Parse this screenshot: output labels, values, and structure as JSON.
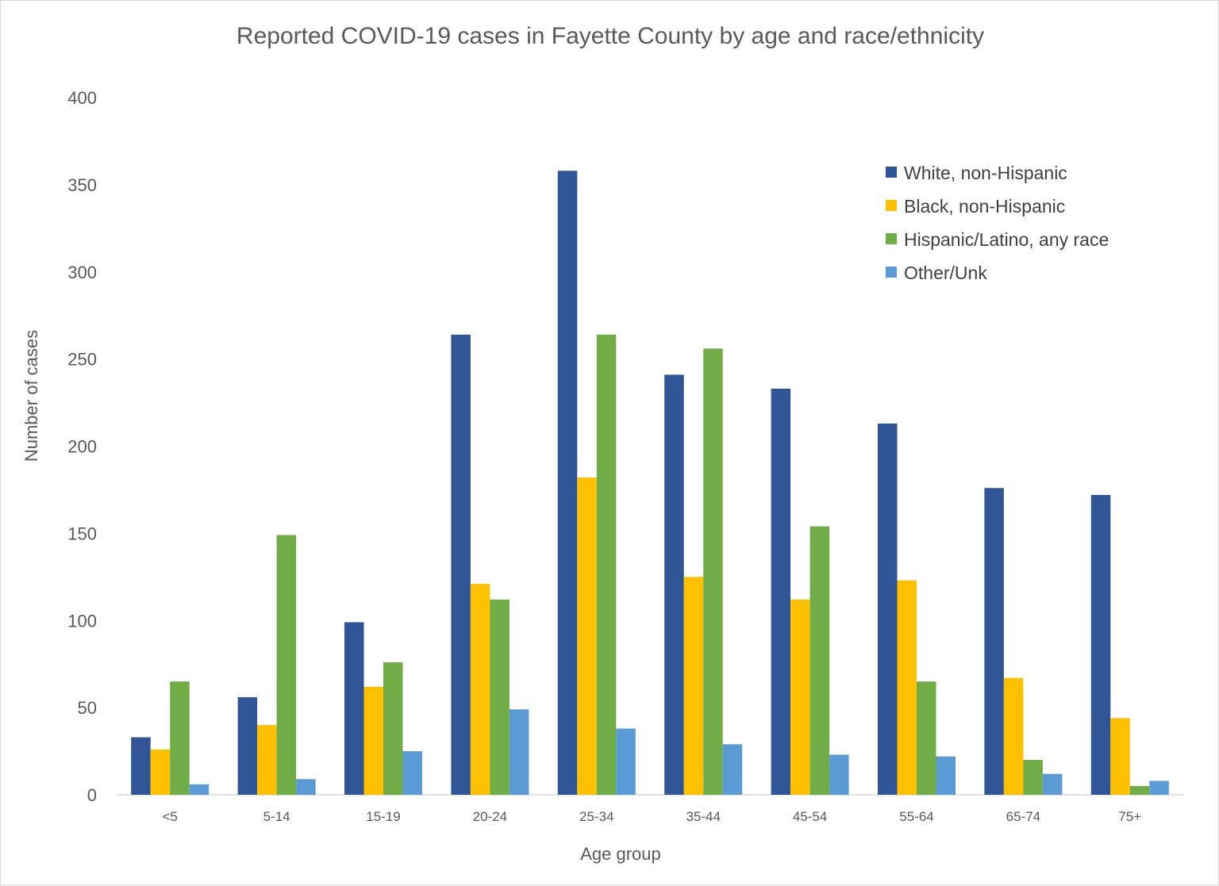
{
  "chart_data": {
    "type": "bar",
    "title": "Reported COVID-19 cases in Fayette County by age and race/ethnicity",
    "xlabel": "Age group",
    "ylabel": "Number of cases",
    "ylim": [
      0,
      400
    ],
    "yticks": [
      0,
      50,
      100,
      150,
      200,
      250,
      300,
      350,
      400
    ],
    "grid": false,
    "legend_position": "top-right",
    "categories": [
      "<5",
      "5-14",
      "15-19",
      "20-24",
      "25-34",
      "35-44",
      "45-54",
      "55-64",
      "65-74",
      "75+"
    ],
    "series": [
      {
        "name": "White, non-Hispanic",
        "color": "#2f5597",
        "values": [
          33,
          56,
          99,
          264,
          358,
          241,
          233,
          213,
          176,
          172
        ]
      },
      {
        "name": "Black, non-Hispanic",
        "color": "#ffc000",
        "values": [
          26,
          40,
          62,
          121,
          182,
          125,
          112,
          123,
          67,
          44
        ]
      },
      {
        "name": "Hispanic/Latino, any race",
        "color": "#70ad47",
        "values": [
          65,
          149,
          76,
          112,
          264,
          256,
          154,
          65,
          20,
          5
        ]
      },
      {
        "name": "Other/Unk",
        "color": "#5b9bd5",
        "values": [
          6,
          9,
          25,
          49,
          38,
          29,
          23,
          22,
          12,
          8
        ]
      }
    ]
  }
}
